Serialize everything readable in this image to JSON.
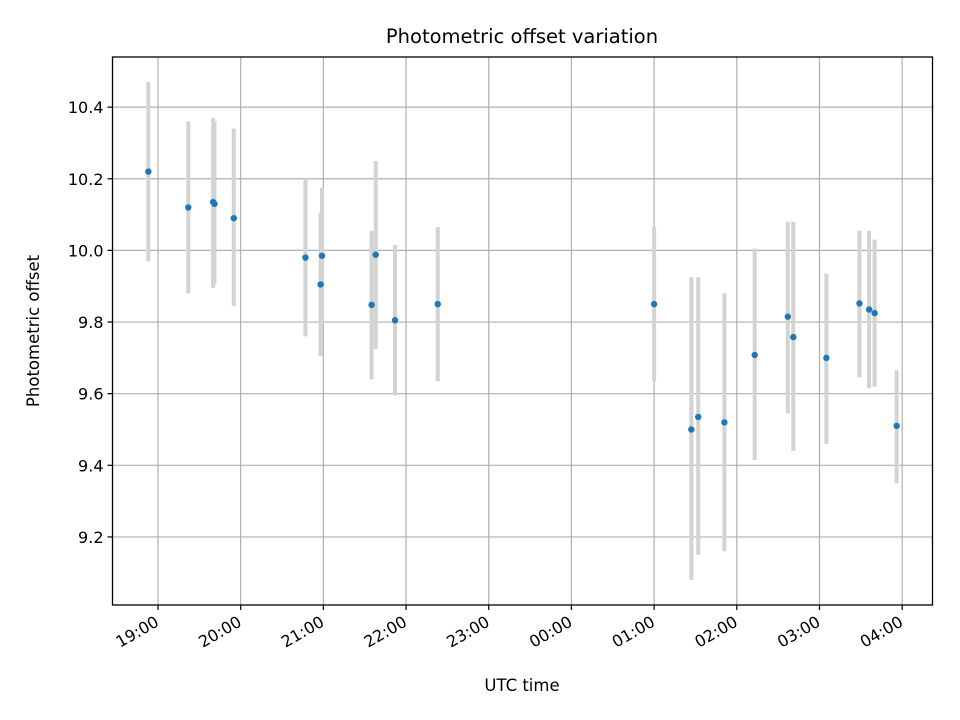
{
  "chart_data": {
    "type": "scatter",
    "title": "Photometric offset variation",
    "xlabel": "UTC time",
    "ylabel": "Photometric offset",
    "x_unit": "UTC time (HH:MM)",
    "x_ticks": [
      "19:00",
      "20:00",
      "21:00",
      "22:00",
      "23:00",
      "00:00",
      "01:00",
      "02:00",
      "03:00",
      "04:00"
    ],
    "x_range": [
      "18:27",
      "04:22"
    ],
    "y_ticks": [
      "9.2",
      "9.4",
      "9.6",
      "9.8",
      "10.0",
      "10.2",
      "10.4"
    ],
    "ylim": [
      9.01,
      10.54
    ],
    "grid": true,
    "marker_color": "#1f77b4",
    "errorbar_color": "#d3d3d3",
    "points": [
      {
        "x": "18:53",
        "y": 10.22,
        "err_low": 9.97,
        "err_high": 10.47
      },
      {
        "x": "19:22",
        "y": 10.12,
        "err_low": 9.88,
        "err_high": 10.36
      },
      {
        "x": "19:40",
        "y": 10.135,
        "err_low": 9.895,
        "err_high": 10.37
      },
      {
        "x": "19:41",
        "y": 10.13,
        "err_low": 9.905,
        "err_high": 10.36
      },
      {
        "x": "19:55",
        "y": 10.09,
        "err_low": 9.845,
        "err_high": 10.34
      },
      {
        "x": "20:47",
        "y": 9.98,
        "err_low": 9.76,
        "err_high": 10.2
      },
      {
        "x": "20:58",
        "y": 9.905,
        "err_low": 9.705,
        "err_high": 10.105
      },
      {
        "x": "20:59",
        "y": 9.985,
        "err_low": 9.795,
        "err_high": 10.175
      },
      {
        "x": "21:35",
        "y": 9.848,
        "err_low": 9.64,
        "err_high": 10.055
      },
      {
        "x": "21:38",
        "y": 9.988,
        "err_low": 9.725,
        "err_high": 10.25
      },
      {
        "x": "21:52",
        "y": 9.805,
        "err_low": 9.595,
        "err_high": 10.015
      },
      {
        "x": "22:23",
        "y": 9.85,
        "err_low": 9.635,
        "err_high": 10.065
      },
      {
        "x": "01:00",
        "y": 9.85,
        "err_low": 9.635,
        "err_high": 10.065
      },
      {
        "x": "01:27",
        "y": 9.5,
        "err_low": 9.08,
        "err_high": 9.925
      },
      {
        "x": "01:32",
        "y": 9.535,
        "err_low": 9.15,
        "err_high": 9.925
      },
      {
        "x": "01:51",
        "y": 9.52,
        "err_low": 9.16,
        "err_high": 9.88
      },
      {
        "x": "02:13",
        "y": 9.708,
        "err_low": 9.415,
        "err_high": 10.005
      },
      {
        "x": "02:37",
        "y": 9.815,
        "err_low": 9.545,
        "err_high": 10.08
      },
      {
        "x": "02:41",
        "y": 9.758,
        "err_low": 9.44,
        "err_high": 10.08
      },
      {
        "x": "03:05",
        "y": 9.7,
        "err_low": 9.46,
        "err_high": 9.935
      },
      {
        "x": "03:29",
        "y": 9.852,
        "err_low": 9.645,
        "err_high": 10.055
      },
      {
        "x": "03:36",
        "y": 9.835,
        "err_low": 9.615,
        "err_high": 10.055
      },
      {
        "x": "03:40",
        "y": 9.825,
        "err_low": 9.62,
        "err_high": 10.03
      },
      {
        "x": "03:56",
        "y": 9.51,
        "err_low": 9.35,
        "err_high": 9.665
      }
    ]
  }
}
